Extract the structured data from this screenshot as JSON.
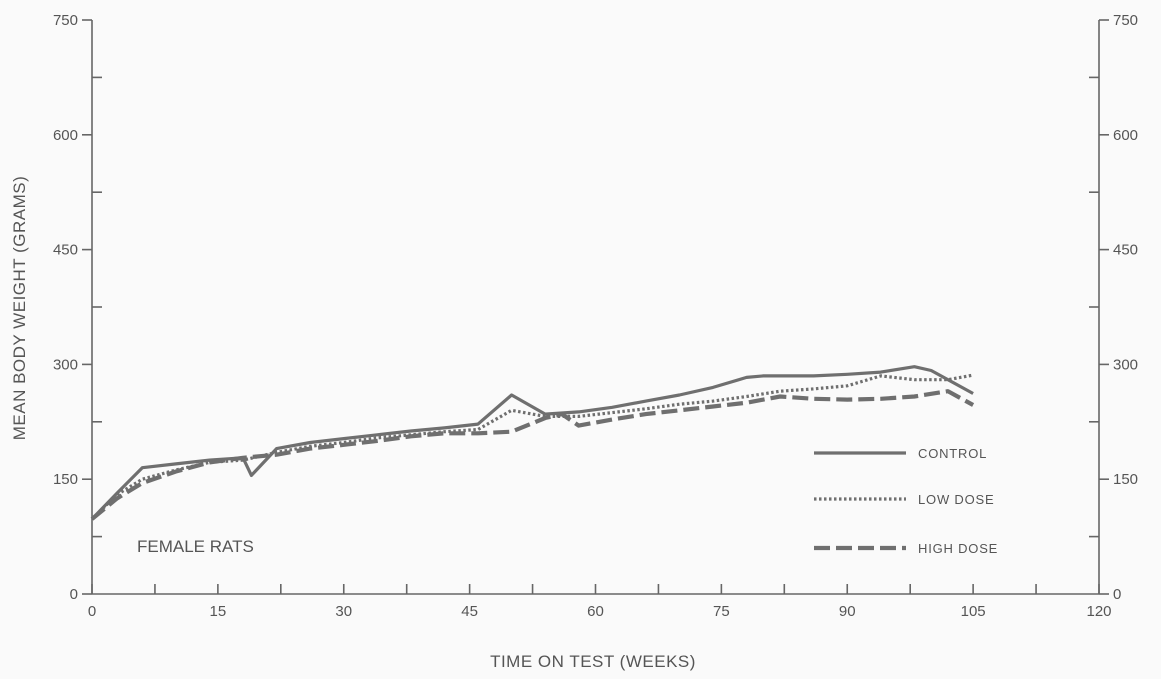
{
  "chart_data": {
    "type": "line",
    "title": "",
    "xlabel": "TIME ON TEST (WEEKS)",
    "ylabel": "MEAN BODY WEIGHT (GRAMS)",
    "xlim": [
      0,
      120
    ],
    "ylim": [
      0,
      750
    ],
    "x_ticks": [
      0,
      15,
      30,
      45,
      60,
      75,
      90,
      105,
      120
    ],
    "x_ticks_minor": [
      7.5,
      22.5,
      37.5,
      52.5,
      67.5,
      82.5,
      97.5,
      112.5
    ],
    "y_ticks": [
      0,
      150,
      300,
      450,
      600,
      750
    ],
    "y_ticks_minor": [
      75,
      225,
      375,
      525,
      675
    ],
    "x_tick_labels": [
      "0",
      "15",
      "30",
      "45",
      "60",
      "75",
      "90",
      "105",
      "120"
    ],
    "y_tick_labels_left": [
      "0",
      "150",
      "300",
      "450",
      "600",
      "750"
    ],
    "y_tick_labels_right": [
      "0",
      "150",
      "300",
      "450",
      "600",
      "750"
    ],
    "annotation": "FEMALE RATS",
    "legend_position": "lower-right",
    "grid": false,
    "series": [
      {
        "name": "CONTROL",
        "style": "solid",
        "color": "#6f6f6f",
        "x": [
          0,
          3,
          6,
          10,
          14,
          18,
          19,
          22,
          26,
          30,
          34,
          38,
          42,
          46,
          50,
          54,
          58,
          62,
          66,
          70,
          74,
          78,
          80,
          82,
          86,
          90,
          94,
          98,
          100,
          105
        ],
        "y": [
          98,
          132,
          165,
          170,
          175,
          178,
          155,
          190,
          198,
          203,
          208,
          213,
          217,
          222,
          260,
          235,
          238,
          244,
          252,
          260,
          270,
          283,
          285,
          285,
          285,
          287,
          290,
          297,
          292,
          262
        ]
      },
      {
        "name": "LOW DOSE",
        "style": "dotted",
        "color": "#6f6f6f",
        "x": [
          0,
          3,
          6,
          10,
          14,
          18,
          22,
          26,
          30,
          34,
          38,
          42,
          46,
          50,
          54,
          58,
          62,
          66,
          70,
          74,
          78,
          82,
          86,
          90,
          94,
          98,
          102,
          105
        ],
        "y": [
          98,
          130,
          150,
          162,
          172,
          175,
          185,
          193,
          198,
          204,
          208,
          212,
          215,
          240,
          232,
          232,
          237,
          242,
          248,
          252,
          258,
          265,
          268,
          272,
          285,
          280,
          280,
          286
        ]
      },
      {
        "name": "HIGH DOSE",
        "style": "dashed",
        "color": "#6f6f6f",
        "x": [
          0,
          3,
          6,
          10,
          14,
          18,
          22,
          26,
          30,
          34,
          38,
          42,
          46,
          50,
          54,
          56,
          58,
          62,
          66,
          70,
          74,
          78,
          82,
          86,
          90,
          94,
          98,
          102,
          105
        ],
        "y": [
          98,
          125,
          145,
          160,
          172,
          178,
          182,
          190,
          195,
          200,
          206,
          210,
          210,
          212,
          230,
          235,
          220,
          228,
          235,
          240,
          245,
          250,
          258,
          255,
          254,
          255,
          258,
          265,
          247
        ]
      }
    ]
  }
}
